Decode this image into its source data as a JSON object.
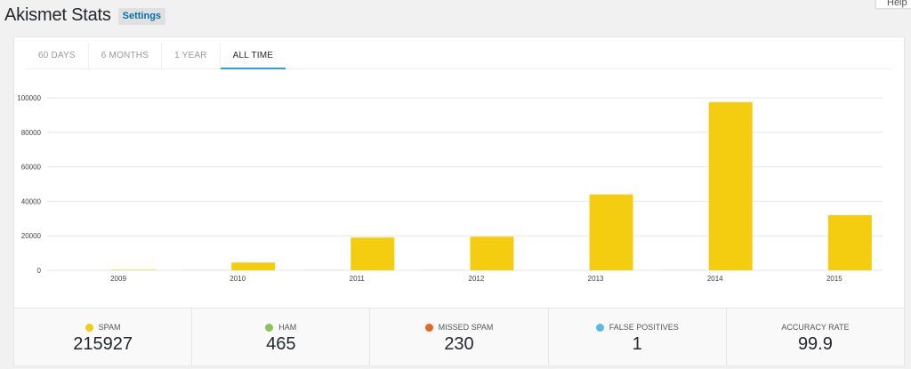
{
  "help": {
    "label": "Help"
  },
  "header": {
    "title": "Akismet Stats",
    "settings_label": "Settings"
  },
  "tabs": [
    {
      "label": "60 DAYS",
      "active": false
    },
    {
      "label": "6 MONTHS",
      "active": false
    },
    {
      "label": "1 YEAR",
      "active": false
    },
    {
      "label": "ALL TIME",
      "active": true
    }
  ],
  "chart_data": {
    "type": "bar",
    "title": "",
    "xlabel": "",
    "ylabel": "",
    "categories": [
      "2009",
      "2010",
      "2011",
      "2012",
      "2013",
      "2014",
      "2015"
    ],
    "ylim": [
      0,
      100000
    ],
    "yticks": [
      "0",
      "20000",
      "40000",
      "60000",
      "80000",
      "100000"
    ],
    "grid": true,
    "series": [
      {
        "values": [
          150,
          300,
          300,
          300,
          150,
          300,
          0
        ],
        "color": "#dddddd"
      },
      {
        "values": [
          300,
          4500,
          19000,
          19500,
          44000,
          97500,
          32000
        ],
        "color": "#f4cc10"
      }
    ]
  },
  "summary": [
    {
      "label": "SPAM",
      "value": "215927",
      "color": "#f4cc10"
    },
    {
      "label": "HAM",
      "value": "465",
      "color": "#8fbf5f"
    },
    {
      "label": "MISSED SPAM",
      "value": "230",
      "color": "#e8661e"
    },
    {
      "label": "FALSE POSITIVES",
      "value": "1",
      "color": "#5bb9e8"
    },
    {
      "label": "ACCURACY RATE",
      "value": "99.9",
      "color": ""
    }
  ]
}
